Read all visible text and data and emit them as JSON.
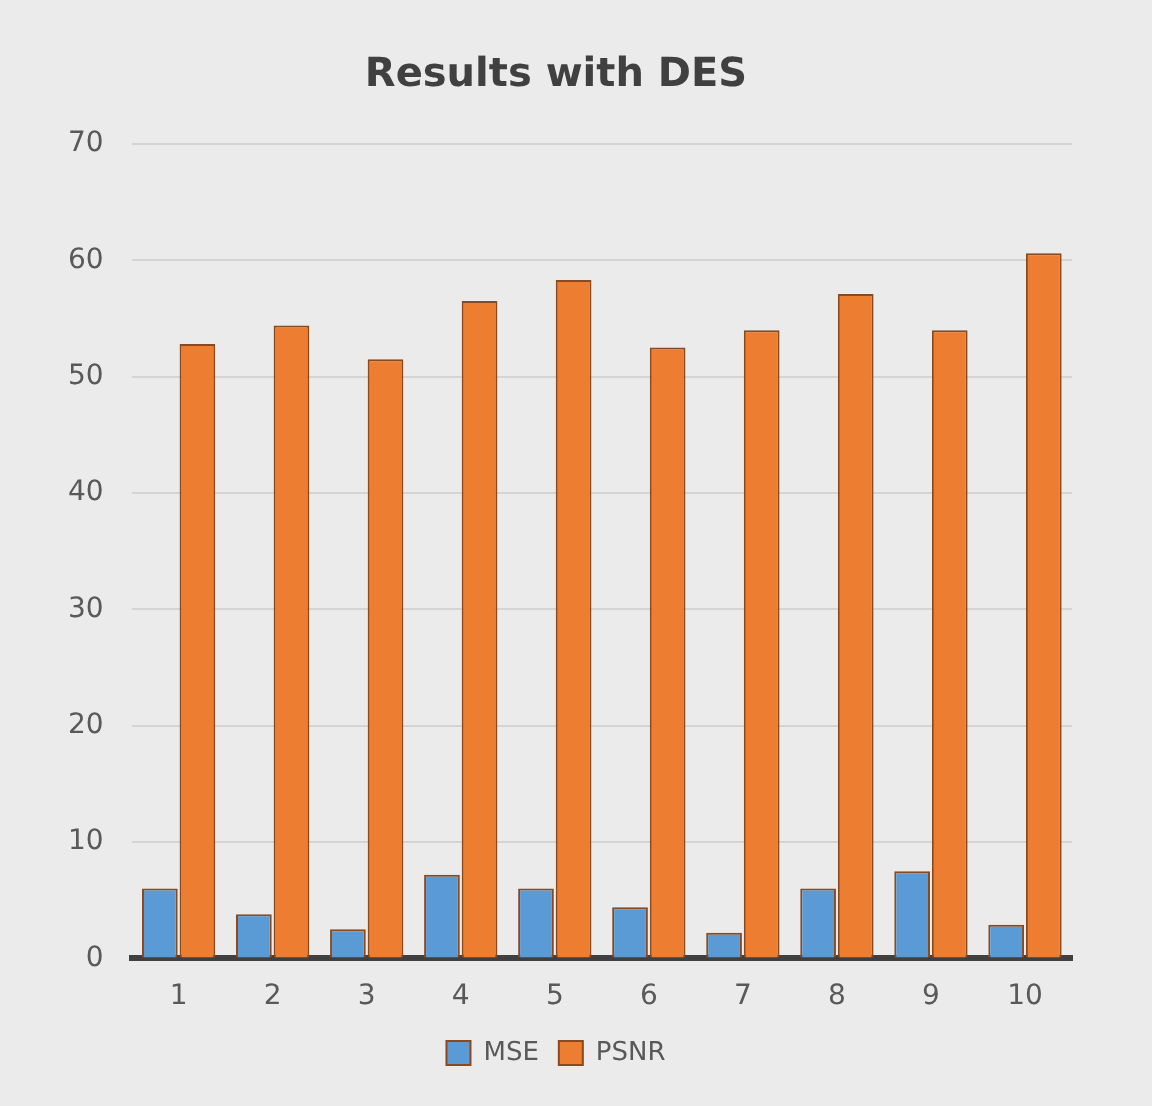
{
  "chart_data": {
    "type": "bar",
    "title": "Results with DES",
    "categories": [
      "1",
      "2",
      "3",
      "4",
      "5",
      "6",
      "7",
      "8",
      "9",
      "10"
    ],
    "series": [
      {
        "name": "MSE",
        "color": "#5b9bd5",
        "values": [
          6.0,
          3.8,
          2.5,
          7.2,
          6.0,
          4.4,
          2.2,
          6.0,
          7.5,
          2.9
        ]
      },
      {
        "name": "PSNR",
        "color": "#ed7d31",
        "values": [
          52.8,
          54.4,
          51.5,
          56.5,
          58.3,
          52.5,
          54.0,
          57.1,
          54.0,
          60.6
        ]
      }
    ],
    "ylim": [
      0,
      70
    ],
    "yticks": [
      0,
      10,
      20,
      30,
      40,
      50,
      60,
      70
    ],
    "grid": "y",
    "legend": "bottom"
  }
}
